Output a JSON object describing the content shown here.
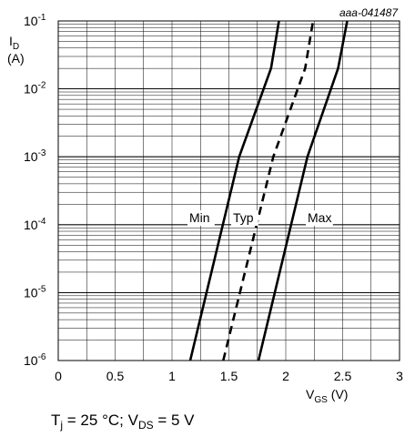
{
  "chart_data": {
    "type": "line",
    "id_code": "aaa-041487",
    "xlabel": {
      "main": "V",
      "sub": "GS",
      "unit": "(V)"
    },
    "ylabel": {
      "main": "I",
      "sub": "D",
      "unit": "(A)"
    },
    "xlim": [
      0,
      3
    ],
    "ylim": [
      1e-06,
      0.1
    ],
    "y_scale": "log",
    "grid": true,
    "x_ticks": [
      "0",
      "0.5",
      "1",
      "1.5",
      "2",
      "2.5",
      "3"
    ],
    "y_ticks": [
      {
        "base": "10",
        "exp": "-6"
      },
      {
        "base": "10",
        "exp": "-5"
      },
      {
        "base": "10",
        "exp": "-4"
      },
      {
        "base": "10",
        "exp": "-3"
      },
      {
        "base": "10",
        "exp": "-2"
      },
      {
        "base": "10",
        "exp": "-1"
      }
    ],
    "series": [
      {
        "name": "Min",
        "style": "solid",
        "points": [
          [
            1.16,
            1e-06
          ],
          [
            1.59,
            0.001
          ],
          [
            1.87,
            0.02
          ],
          [
            1.94,
            0.1
          ]
        ]
      },
      {
        "name": "Typ",
        "style": "dashed",
        "points": [
          [
            1.45,
            1e-06
          ],
          [
            1.89,
            0.001
          ],
          [
            2.17,
            0.02
          ],
          [
            2.24,
            0.1
          ]
        ]
      },
      {
        "name": "Max",
        "style": "solid",
        "points": [
          [
            1.76,
            1e-06
          ],
          [
            2.19,
            0.001
          ],
          [
            2.46,
            0.02
          ],
          [
            2.54,
            0.1
          ]
        ]
      }
    ]
  },
  "condition": {
    "t": "T",
    "t_sub": "j",
    "t_val": " = 25 °C; ",
    "v": "V",
    "v_sub": "DS",
    "v_val": " = 5 V"
  }
}
